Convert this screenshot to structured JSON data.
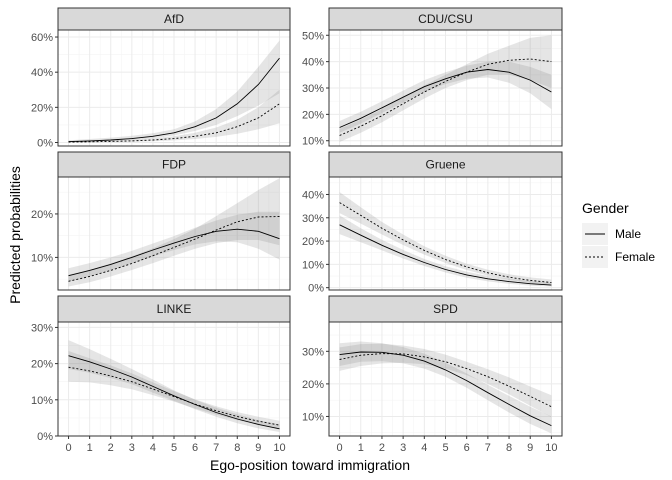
{
  "chart_data": {
    "type": "line",
    "facet_type": "wrap",
    "ncol": 2,
    "xlabel": "Ego-position toward immigration",
    "ylabel": "Predicted probabilities",
    "x": [
      0,
      1,
      2,
      3,
      4,
      5,
      6,
      7,
      8,
      9,
      10
    ],
    "x_ticks": [
      "0",
      "1",
      "2",
      "3",
      "4",
      "5",
      "6",
      "7",
      "8",
      "9",
      "10"
    ],
    "legend": {
      "title": "Gender",
      "position": "right",
      "entries": [
        {
          "label": "Male",
          "linetype": "solid"
        },
        {
          "label": "Female",
          "linetype": "dotted"
        }
      ]
    },
    "panels": [
      {
        "title": "AfD",
        "ylim": [
          -0.02,
          0.64
        ],
        "yticks": [
          0,
          0.2,
          0.4,
          0.6
        ],
        "ytick_labels": [
          "0%",
          "20%",
          "40%",
          "60%"
        ],
        "series": [
          {
            "name": "Male",
            "values": [
              0.005,
              0.009,
              0.014,
              0.022,
              0.035,
              0.055,
              0.09,
              0.14,
              0.22,
              0.33,
              0.48
            ],
            "lower": [
              0.002,
              0.004,
              0.008,
              0.014,
              0.024,
              0.04,
              0.066,
              0.1,
              0.15,
              0.21,
              0.28
            ],
            "upper": [
              0.012,
              0.02,
              0.028,
              0.038,
              0.052,
              0.075,
              0.12,
              0.19,
              0.29,
              0.43,
              0.58
            ]
          },
          {
            "name": "Female",
            "values": [
              0.002,
              0.004,
              0.006,
              0.009,
              0.014,
              0.022,
              0.035,
              0.055,
              0.09,
              0.14,
              0.22
            ],
            "lower": [
              0.0,
              0.001,
              0.002,
              0.004,
              0.007,
              0.012,
              0.02,
              0.032,
              0.05,
              0.075,
              0.11
            ],
            "upper": [
              0.006,
              0.009,
              0.012,
              0.016,
              0.024,
              0.036,
              0.055,
              0.085,
              0.13,
              0.2,
              0.3
            ]
          }
        ]
      },
      {
        "title": "CDU/CSU",
        "ylim": [
          0.08,
          0.52
        ],
        "yticks": [
          0.1,
          0.2,
          0.3,
          0.4,
          0.5
        ],
        "ytick_labels": [
          "10%",
          "20%",
          "30%",
          "40%",
          "50%"
        ],
        "series": [
          {
            "name": "Male",
            "values": [
              0.15,
              0.185,
              0.225,
              0.265,
              0.305,
              0.335,
              0.36,
              0.37,
              0.36,
              0.33,
              0.285
            ],
            "lower": [
              0.13,
              0.165,
              0.205,
              0.245,
              0.285,
              0.315,
              0.335,
              0.34,
              0.32,
              0.28,
              0.22
            ],
            "upper": [
              0.175,
              0.21,
              0.25,
              0.29,
              0.33,
              0.36,
              0.385,
              0.4,
              0.4,
              0.38,
              0.35
            ]
          },
          {
            "name": "Female",
            "values": [
              0.12,
              0.155,
              0.195,
              0.24,
              0.285,
              0.325,
              0.36,
              0.39,
              0.405,
              0.41,
              0.4
            ],
            "lower": [
              0.095,
              0.13,
              0.17,
              0.215,
              0.26,
              0.3,
              0.33,
              0.35,
              0.35,
              0.33,
              0.3
            ],
            "upper": [
              0.145,
              0.18,
              0.22,
              0.265,
              0.31,
              0.35,
              0.39,
              0.43,
              0.46,
              0.49,
              0.5
            ]
          }
        ]
      },
      {
        "title": "FDP",
        "ylim": [
          0.025,
          0.285
        ],
        "yticks": [
          0.1,
          0.2
        ],
        "ytick_labels": [
          "10%",
          "20%"
        ],
        "series": [
          {
            "name": "Male",
            "values": [
              0.058,
              0.07,
              0.084,
              0.1,
              0.117,
              0.133,
              0.148,
              0.16,
              0.165,
              0.16,
              0.143
            ],
            "lower": [
              0.044,
              0.056,
              0.07,
              0.086,
              0.102,
              0.117,
              0.13,
              0.137,
              0.135,
              0.12,
              0.095
            ],
            "upper": [
              0.075,
              0.087,
              0.1,
              0.115,
              0.132,
              0.149,
              0.168,
              0.185,
              0.198,
              0.205,
              0.205
            ]
          },
          {
            "name": "Female",
            "values": [
              0.045,
              0.056,
              0.07,
              0.086,
              0.104,
              0.123,
              0.142,
              0.163,
              0.182,
              0.193,
              0.194
            ],
            "lower": [
              0.033,
              0.043,
              0.056,
              0.071,
              0.087,
              0.104,
              0.12,
              0.133,
              0.14,
              0.14,
              0.128
            ],
            "upper": [
              0.06,
              0.071,
              0.086,
              0.102,
              0.121,
              0.142,
              0.166,
              0.195,
              0.225,
              0.255,
              0.282
            ]
          }
        ]
      },
      {
        "title": "Gruene",
        "ylim": [
          -0.01,
          0.475
        ],
        "yticks": [
          0,
          0.1,
          0.2,
          0.3,
          0.4
        ],
        "ytick_labels": [
          "0%",
          "10%",
          "20%",
          "30%",
          "40%"
        ],
        "series": [
          {
            "name": "Male",
            "values": [
              0.27,
              0.225,
              0.182,
              0.143,
              0.108,
              0.078,
              0.055,
              0.038,
              0.026,
              0.017,
              0.011
            ],
            "lower": [
              0.23,
              0.195,
              0.16,
              0.125,
              0.093,
              0.065,
              0.043,
              0.027,
              0.016,
              0.009,
              0.005
            ],
            "upper": [
              0.31,
              0.255,
              0.205,
              0.162,
              0.123,
              0.092,
              0.068,
              0.05,
              0.038,
              0.029,
              0.022
            ]
          },
          {
            "name": "Female",
            "values": [
              0.365,
              0.31,
              0.255,
              0.205,
              0.16,
              0.121,
              0.089,
              0.064,
              0.045,
              0.031,
              0.022
            ],
            "lower": [
              0.32,
              0.275,
              0.228,
              0.183,
              0.142,
              0.106,
              0.076,
              0.052,
              0.034,
              0.021,
              0.013
            ],
            "upper": [
              0.41,
              0.345,
              0.282,
              0.228,
              0.178,
              0.137,
              0.103,
              0.077,
              0.058,
              0.044,
              0.035
            ]
          }
        ]
      },
      {
        "title": "LINKE",
        "ylim": [
          0.0,
          0.315
        ],
        "yticks": [
          0.0,
          0.1,
          0.2,
          0.3
        ],
        "ytick_labels": [
          "0%",
          "10%",
          "20%",
          "30%"
        ],
        "series": [
          {
            "name": "Male",
            "values": [
              0.222,
              0.205,
              0.185,
              0.163,
              0.137,
              0.111,
              0.087,
              0.065,
              0.047,
              0.032,
              0.02
            ],
            "lower": [
              0.185,
              0.175,
              0.16,
              0.143,
              0.12,
              0.097,
              0.074,
              0.053,
              0.035,
              0.021,
              0.011
            ],
            "upper": [
              0.265,
              0.24,
              0.213,
              0.185,
              0.156,
              0.126,
              0.1,
              0.078,
              0.06,
              0.044,
              0.032
            ]
          },
          {
            "name": "Female",
            "values": [
              0.19,
              0.18,
              0.166,
              0.15,
              0.13,
              0.109,
              0.088,
              0.07,
              0.054,
              0.041,
              0.03
            ],
            "lower": [
              0.15,
              0.148,
              0.14,
              0.129,
              0.113,
              0.095,
              0.076,
              0.059,
              0.044,
              0.031,
              0.02
            ],
            "upper": [
              0.235,
              0.215,
              0.195,
              0.173,
              0.148,
              0.124,
              0.101,
              0.082,
              0.066,
              0.053,
              0.042
            ]
          }
        ]
      },
      {
        "title": "SPD",
        "ylim": [
          0.04,
          0.39
        ],
        "yticks": [
          0.1,
          0.2,
          0.3
        ],
        "ytick_labels": [
          "10%",
          "20%",
          "30%"
        ],
        "series": [
          {
            "name": "Male",
            "values": [
              0.29,
              0.298,
              0.297,
              0.288,
              0.27,
              0.243,
              0.21,
              0.173,
              0.137,
              0.102,
              0.072
            ],
            "lower": [
              0.255,
              0.268,
              0.27,
              0.263,
              0.247,
              0.222,
              0.188,
              0.15,
              0.112,
              0.077,
              0.048
            ],
            "upper": [
              0.325,
              0.33,
              0.325,
              0.313,
              0.293,
              0.265,
              0.232,
              0.197,
              0.163,
              0.13,
              0.1
            ]
          },
          {
            "name": "Female",
            "values": [
              0.275,
              0.288,
              0.293,
              0.292,
              0.283,
              0.268,
              0.247,
              0.222,
              0.193,
              0.162,
              0.13
            ],
            "lower": [
              0.24,
              0.255,
              0.263,
              0.265,
              0.26,
              0.247,
              0.227,
              0.2,
              0.168,
              0.133,
              0.098
            ],
            "upper": [
              0.312,
              0.322,
              0.323,
              0.318,
              0.307,
              0.29,
              0.268,
              0.245,
              0.22,
              0.192,
              0.165
            ]
          }
        ]
      }
    ]
  }
}
